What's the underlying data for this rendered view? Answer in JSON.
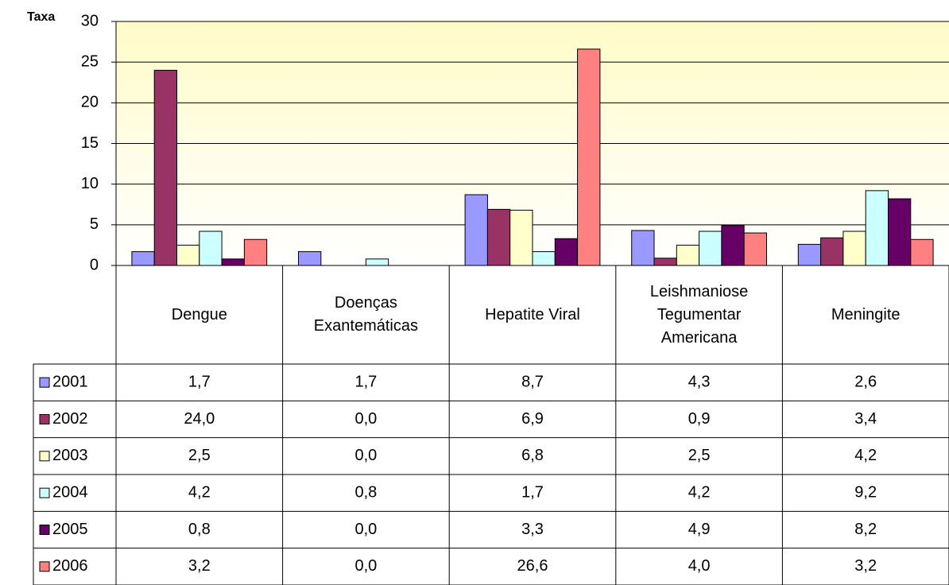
{
  "chart_data": {
    "type": "bar",
    "y_label": "Taxa",
    "categories": [
      "Dengue",
      "Doenças Exantemáticas",
      "Hepatite Viral",
      "Leishmaniose Tegumentar Americana",
      "Meningite"
    ],
    "series": [
      {
        "name": "2001",
        "color": "#9999ff",
        "values": [
          1.7,
          1.7,
          8.7,
          4.3,
          2.6
        ],
        "value_labels": [
          "1,7",
          "1,7",
          "8,7",
          "4,3",
          "2,6"
        ]
      },
      {
        "name": "2002",
        "color": "#993366",
        "values": [
          24.0,
          0.0,
          6.9,
          0.9,
          3.4
        ],
        "value_labels": [
          "24,0",
          "0,0",
          "6,9",
          "0,9",
          "3,4"
        ]
      },
      {
        "name": "2003",
        "color": "#ffffcc",
        "values": [
          2.5,
          0.0,
          6.8,
          2.5,
          4.2
        ],
        "value_labels": [
          "2,5",
          "0,0",
          "6,8",
          "2,5",
          "4,2"
        ]
      },
      {
        "name": "2004",
        "color": "#ccffff",
        "values": [
          4.2,
          0.8,
          1.7,
          4.2,
          9.2
        ],
        "value_labels": [
          "4,2",
          "0,8",
          "1,7",
          "4,2",
          "9,2"
        ]
      },
      {
        "name": "2005",
        "color": "#660066",
        "values": [
          0.8,
          0.0,
          3.3,
          4.9,
          8.2
        ],
        "value_labels": [
          "0,8",
          "0,0",
          "3,3",
          "4,9",
          "8,2"
        ]
      },
      {
        "name": "2006",
        "color": "#ff8080",
        "values": [
          3.2,
          0.0,
          26.6,
          4.0,
          3.2
        ],
        "value_labels": [
          "3,2",
          "0,0",
          "26,6",
          "4,0",
          "3,2"
        ]
      }
    ],
    "ylim": [
      0,
      30
    ],
    "yticks": [
      0,
      5,
      10,
      15,
      20,
      25,
      30
    ],
    "grid": true
  }
}
